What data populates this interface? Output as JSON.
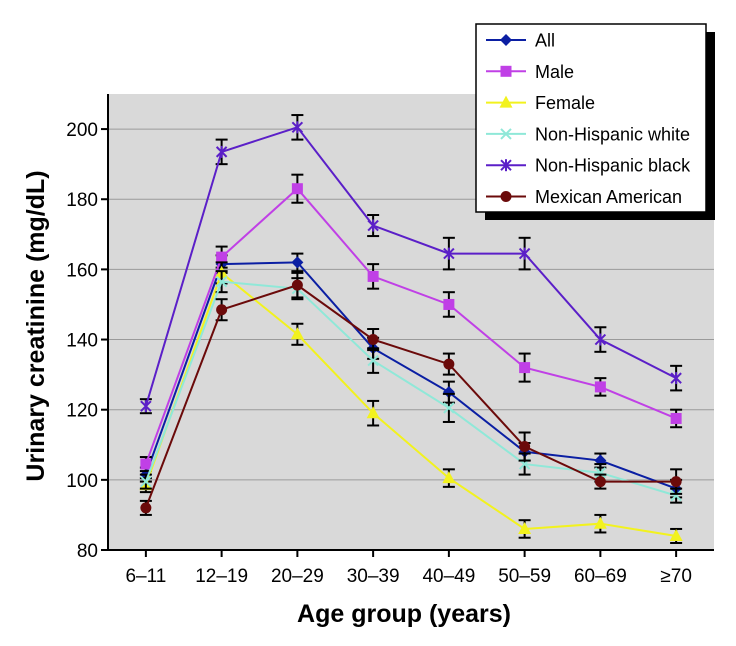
{
  "chart_data": {
    "type": "line",
    "xlabel": "Age group (years)",
    "ylabel": "Urinary creatinine (mg/dL)",
    "categories": [
      "6–11",
      "12–19",
      "20–29",
      "30–39",
      "40–49",
      "50–59",
      "60–69",
      "≥70"
    ],
    "ylim": [
      80,
      210
    ],
    "yticks": [
      80,
      100,
      120,
      140,
      160,
      180,
      200
    ],
    "grid": true,
    "legend_position": "top-right",
    "series": [
      {
        "name": "All",
        "color": "#0b1fa3",
        "marker": "diamond",
        "values": [
          101.5,
          161.5,
          162,
          137.5,
          125,
          108,
          105.5,
          97.5
        ],
        "err": [
          2,
          2.5,
          2.5,
          3,
          3,
          2.5,
          2,
          2.5
        ]
      },
      {
        "name": "Male",
        "color": "#c040e6",
        "marker": "square",
        "values": [
          104.5,
          163.5,
          183,
          158,
          150,
          132,
          126.5,
          117.5
        ],
        "err": [
          2,
          3,
          4,
          3.5,
          3.5,
          4,
          2.5,
          2.5
        ]
      },
      {
        "name": "Female",
        "color": "#f2f21e",
        "marker": "triangle",
        "values": [
          98.5,
          159,
          141.5,
          119,
          100.5,
          86,
          87.5,
          84
        ],
        "err": [
          2,
          3,
          3,
          3.5,
          2.5,
          2.5,
          2.5,
          2
        ]
      },
      {
        "name": "Non-Hispanic white",
        "color": "#8fe8d8",
        "marker": "x",
        "values": [
          99.5,
          156.5,
          154.5,
          134,
          120.5,
          104.5,
          102,
          95.5
        ],
        "err": [
          2,
          3,
          3,
          3.5,
          4,
          3,
          2.5,
          2
        ]
      },
      {
        "name": "Non-Hispanic black",
        "color": "#5b1fc8",
        "marker": "star",
        "values": [
          121,
          193.5,
          200.5,
          172.5,
          164.5,
          164.5,
          140,
          129
        ],
        "err": [
          2,
          3.5,
          3.5,
          3,
          4.5,
          4.5,
          3.5,
          3.5
        ]
      },
      {
        "name": "Mexican American",
        "color": "#6b0a0a",
        "marker": "circle",
        "values": [
          92,
          148.5,
          155.5,
          140,
          133,
          109.5,
          99.5,
          99.5
        ],
        "err": [
          2,
          3,
          3.5,
          3,
          3,
          4,
          2,
          3.5
        ]
      }
    ]
  }
}
